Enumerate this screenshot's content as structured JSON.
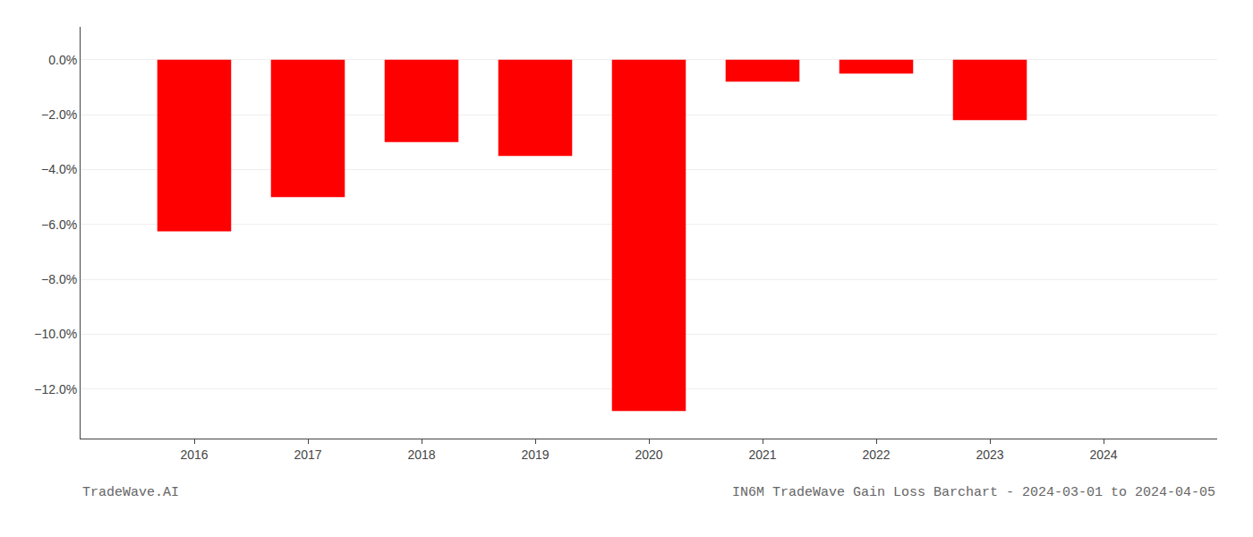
{
  "chart_data": {
    "type": "bar",
    "x": [
      2016,
      2017,
      2018,
      2019,
      2020,
      2021,
      2022,
      2023
    ],
    "values": [
      -6.25,
      -5.0,
      -3.0,
      -3.5,
      -12.8,
      -0.8,
      -0.5,
      -2.2
    ],
    "color": "#ff0000",
    "xlim": [
      2015.0,
      2025.0
    ],
    "xticks": [
      2016,
      2017,
      2018,
      2019,
      2020,
      2021,
      2022,
      2023,
      2024
    ],
    "ylim": [
      -13.8,
      1.2
    ],
    "yticks": [
      {
        "value": 0,
        "label": "0.0%"
      },
      {
        "value": -2,
        "label": "−2.0%"
      },
      {
        "value": -4,
        "label": "−4.0%"
      },
      {
        "value": -6,
        "label": "−6.0%"
      },
      {
        "value": -8,
        "label": "−8.0%"
      },
      {
        "value": -10,
        "label": "−10.0%"
      },
      {
        "value": -12,
        "label": "−12.0%"
      }
    ],
    "grid": "y",
    "annotations": [
      "TradeWave.AI",
      "IN6M TradeWave Gain Loss Barchart - 2024-03-01 to 2024-04-05"
    ]
  }
}
